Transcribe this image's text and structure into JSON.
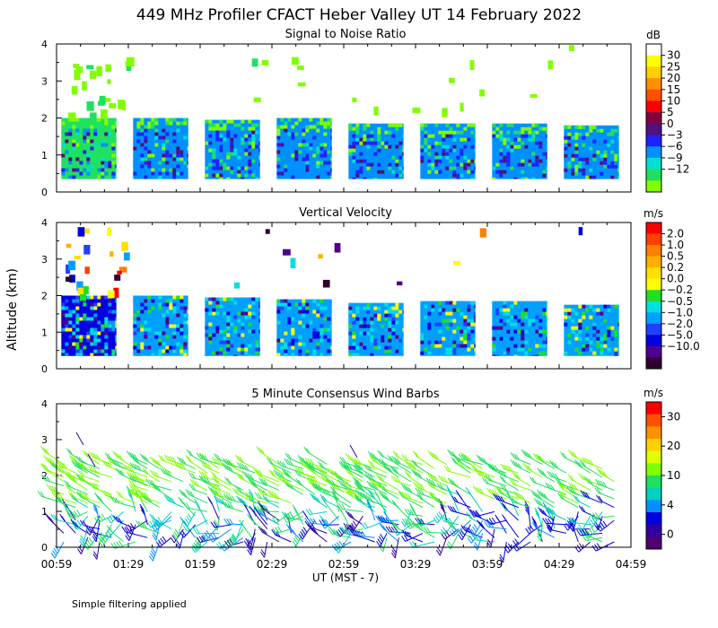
{
  "title": "449 MHz Profiler CFACT Heber Valley UT 14 February 2022",
  "ylabel": "Altitude (km)",
  "xlabel": "UT  (MST - 7)",
  "xticks": [
    "00:59",
    "01:29",
    "01:59",
    "02:29",
    "02:59",
    "03:29",
    "03:59",
    "04:29",
    "04:59"
  ],
  "yticks": [
    "0",
    "1",
    "2",
    "3",
    "4"
  ],
  "footnote": "Simple filtering applied",
  "chart_data": [
    {
      "type": "heatmap",
      "title": "Signal to Noise Ratio",
      "units": "dB",
      "xlabel": "UT (MST - 7)",
      "ylabel": "Altitude (km)",
      "xlim": [
        "00:59",
        "04:59"
      ],
      "ylim": [
        0,
        4
      ],
      "colorbar": {
        "labels": [
          "30",
          "25",
          "20",
          "15",
          "10",
          "5",
          "0",
          "−3",
          "−6",
          "−9",
          "−12"
        ],
        "colors": [
          "#ffffff",
          "#ffff00",
          "#ffd000",
          "#ff9000",
          "#ff5000",
          "#ff0000",
          "#800040",
          "#501080",
          "#2020ff",
          "#0090ff",
          "#00e0d0",
          "#20e060",
          "#80ff00"
        ]
      },
      "blocks": [
        {
          "start": "01:01",
          "end": "01:24",
          "top_km": 2.0
        },
        {
          "start": "01:31",
          "end": "01:54",
          "top_km": 2.0
        },
        {
          "start": "02:01",
          "end": "02:24",
          "top_km": 1.95
        },
        {
          "start": "02:31",
          "end": "02:54",
          "top_km": 2.0
        },
        {
          "start": "03:01",
          "end": "03:24",
          "top_km": 1.85
        },
        {
          "start": "03:31",
          "end": "03:54",
          "top_km": 1.85
        },
        {
          "start": "04:01",
          "end": "04:24",
          "top_km": 1.85
        },
        {
          "start": "04:31",
          "end": "04:54",
          "top_km": 1.8
        }
      ]
    },
    {
      "type": "heatmap",
      "title": "Vertical Velocity",
      "units": "m/s",
      "xlabel": "UT (MST - 7)",
      "ylabel": "Altitude (km)",
      "xlim": [
        "00:59",
        "04:59"
      ],
      "ylim": [
        0,
        4
      ],
      "colorbar": {
        "labels": [
          "2.0",
          "1.0",
          "0.5",
          "0.2",
          "0.0",
          "−0.2",
          "−0.5",
          "−1.0",
          "−2.0",
          "−5.0",
          "−10.0"
        ],
        "colors": [
          "#ff0000",
          "#ff4000",
          "#ff8000",
          "#ffb000",
          "#ffe000",
          "#ffff00",
          "#20e020",
          "#00e0e0",
          "#00a0ff",
          "#2040ff",
          "#0000e0",
          "#500090",
          "#300030"
        ]
      },
      "blocks": [
        {
          "start": "01:01",
          "end": "01:24",
          "top_km": 2.0
        },
        {
          "start": "01:31",
          "end": "01:54",
          "top_km": 2.0
        },
        {
          "start": "02:01",
          "end": "02:24",
          "top_km": 1.95
        },
        {
          "start": "02:31",
          "end": "02:54",
          "top_km": 1.9
        },
        {
          "start": "03:01",
          "end": "03:24",
          "top_km": 1.8
        },
        {
          "start": "03:31",
          "end": "03:54",
          "top_km": 1.85
        },
        {
          "start": "04:01",
          "end": "04:24",
          "top_km": 1.85
        },
        {
          "start": "04:31",
          "end": "04:54",
          "top_km": 1.75
        }
      ]
    },
    {
      "type": "wind_barbs",
      "title": "5 Minute Consensus Wind Barbs",
      "units": "m/s",
      "xlabel": "UT (MST - 7)",
      "ylabel": "Altitude (km)",
      "xlim": [
        "00:59",
        "04:59"
      ],
      "ylim": [
        0,
        4
      ],
      "colorbar": {
        "labels": [
          "30",
          "20",
          "10",
          "4",
          "0"
        ],
        "colors": [
          "#ff0000",
          "#ff5000",
          "#ff9000",
          "#ffd000",
          "#e0ff00",
          "#80ff00",
          "#20e060",
          "#00d0c0",
          "#0090ff",
          "#0000e0",
          "#3000a0",
          "#500070"
        ]
      }
    }
  ]
}
